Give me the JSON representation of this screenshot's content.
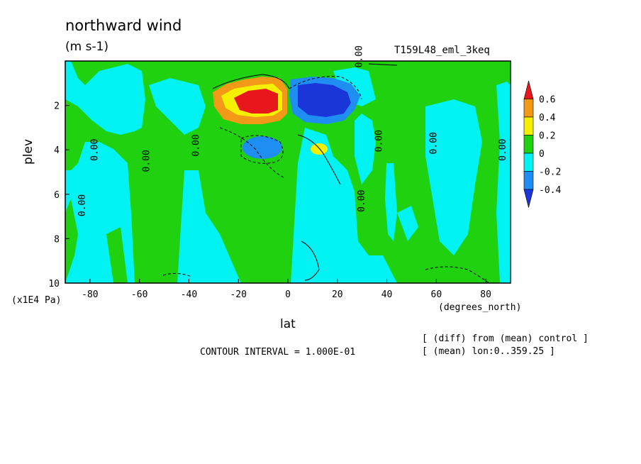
{
  "chart_data": {
    "type": "heatmap",
    "title": "northward wind",
    "units": "(m s-1)",
    "run_label": "T159L48_eml_3keq",
    "xlabel": "lat",
    "x_units": "(degrees_north)",
    "ylabel": "plev",
    "y_units": "(x1E4 Pa)",
    "xlim": [
      -90,
      90
    ],
    "ylim": [
      10,
      0
    ],
    "x_ticks": [
      "-80",
      "-60",
      "-40",
      "-20",
      "0",
      "20",
      "40",
      "60",
      "80"
    ],
    "x_tick_values": [
      -80,
      -60,
      -40,
      -20,
      0,
      20,
      40,
      60,
      80
    ],
    "y_ticks": [
      "2",
      "4",
      "6",
      "8",
      "10"
    ],
    "y_tick_values": [
      2,
      4,
      6,
      8,
      10
    ],
    "contour_interval_text": "CONTOUR INTERVAL = 1.000E-01",
    "notes": [
      "[ (diff) from (mean) control ]",
      "[ (mean) lon:0..359.25 ]"
    ],
    "colorbar": {
      "labels": [
        "0.6",
        "0.4",
        "0.2",
        "0",
        "-0.2",
        "-0.4"
      ],
      "colors": [
        "#e8171c",
        "#f29a17",
        "#f5f000",
        "#1fd10e",
        "#00f2f2",
        "#1f8ef2",
        "#1b36d8"
      ]
    },
    "fill_colors": {
      "below_-0.4": "#1b36d8",
      "-0.4_to_-0.2": "#1f8ef2",
      "-0.2_to_0": "#00f2f2",
      "0_to_0.2": "#1fd10e",
      "0.2_to_0.4": "#f5f000",
      "0.4_to_0.6": "#f29a17",
      "above_0.6": "#e8171c"
    },
    "features": [
      {
        "type": "maximum",
        "lat": -15,
        "plev": 2.2,
        "value": 0.6
      },
      {
        "type": "minimum",
        "lat": 13,
        "plev": 2.0,
        "value": -0.6
      },
      {
        "type": "minimum",
        "lat": -11,
        "plev": 4.0,
        "value": -0.4
      },
      {
        "type": "maximum",
        "lat": 13,
        "plev": 4.0,
        "value": 0.25
      }
    ],
    "contour_labels": [
      "0.00"
    ]
  }
}
